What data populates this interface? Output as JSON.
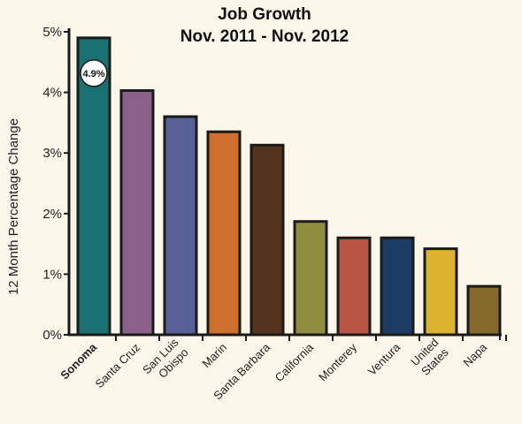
{
  "chart_data": {
    "type": "bar",
    "title": [
      "Job Growth",
      "Nov. 2011 - Nov. 2012"
    ],
    "ylabel": "12 Month Percentage Change",
    "xlabel": "",
    "ylim": [
      0,
      5
    ],
    "yticks": [
      "0%",
      "1%",
      "2%",
      "3%",
      "4%",
      "5%"
    ],
    "grid": false,
    "categories": [
      [
        "Sonoma"
      ],
      [
        "Santa Cruz"
      ],
      [
        "San Luis",
        "Obispo"
      ],
      [
        "Marin"
      ],
      [
        "Santa Barbara"
      ],
      [
        "California"
      ],
      [
        "Monterey"
      ],
      [
        "Ventura"
      ],
      [
        "United",
        "States"
      ],
      [
        "Napa"
      ]
    ],
    "highlight_category": "Sonoma",
    "values": [
      4.9,
      4.03,
      3.6,
      3.35,
      3.13,
      1.87,
      1.6,
      1.6,
      1.42,
      0.8
    ],
    "colors": [
      "#1a7172",
      "#8c6189",
      "#575f96",
      "#d06f2d",
      "#55341f",
      "#8f8e3c",
      "#b85543",
      "#1c3d63",
      "#dbb32e",
      "#866a2c"
    ],
    "data_labels": [
      {
        "index": 0,
        "text": "4.9%"
      }
    ]
  }
}
